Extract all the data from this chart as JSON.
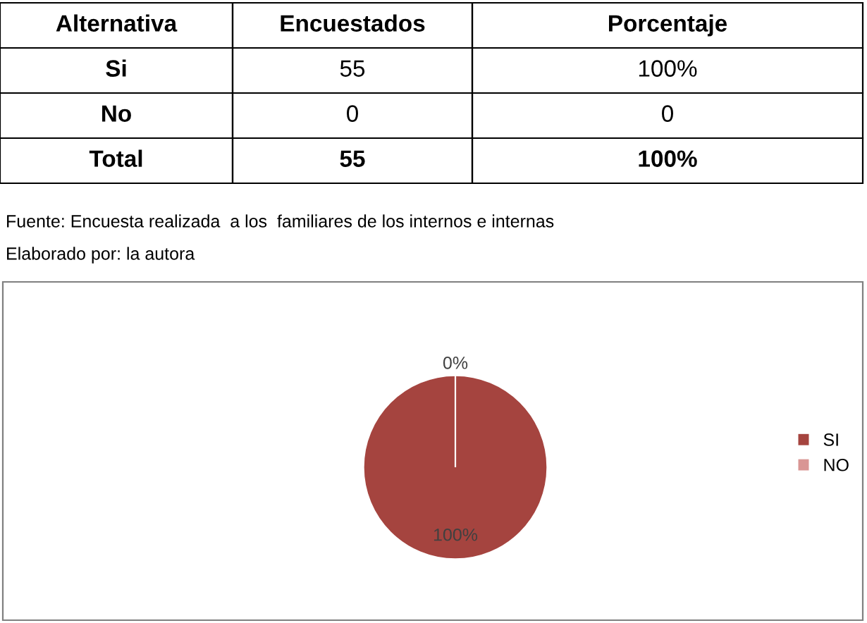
{
  "chart_data": {
    "type": "pie",
    "categories": [
      "SI",
      "NO"
    ],
    "values": [
      100,
      0
    ],
    "colors": [
      "#a5443f",
      "#d99694"
    ],
    "value_labels": [
      "100%",
      "0%"
    ],
    "legend": "right",
    "annotations": [
      "Alternativa",
      "Encuestados",
      "Porcentaje",
      "Si",
      "55",
      "100%",
      "No",
      "0",
      "0",
      "Total",
      "55",
      "100%",
      "Fuente: Encuesta realizada  a los  familiares de los internos e internas",
      "Elaborado por: la autora"
    ]
  }
}
